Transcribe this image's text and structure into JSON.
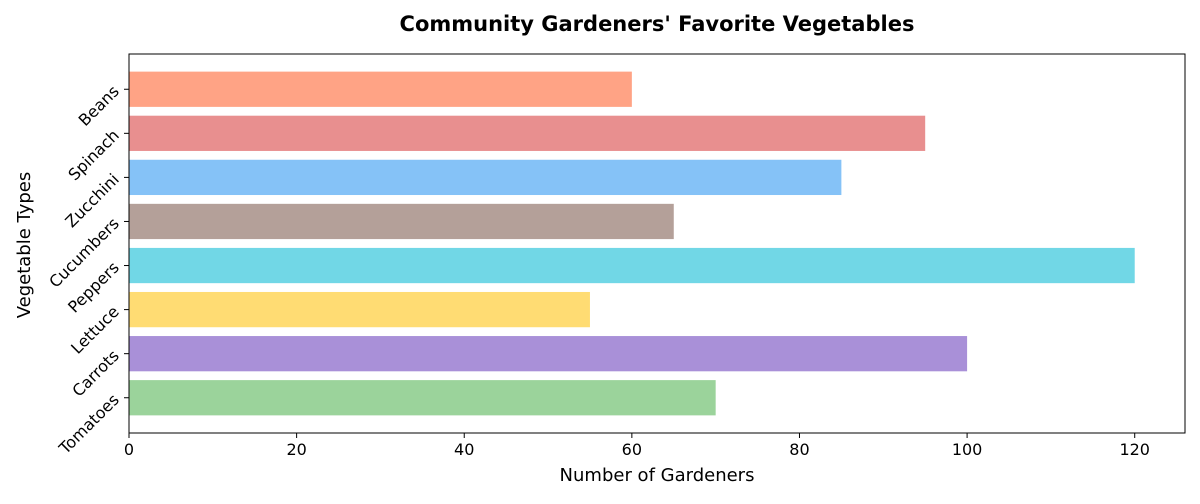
{
  "chart_data": {
    "type": "bar",
    "orientation": "horizontal",
    "title": "Community Gardeners' Favorite Vegetables",
    "xlabel": "Number of Gardeners",
    "ylabel": "Vegetable Types",
    "categories": [
      "Tomatoes",
      "Carrots",
      "Lettuce",
      "Peppers",
      "Cucumbers",
      "Zucchini",
      "Spinach",
      "Beans"
    ],
    "values": [
      70,
      100,
      55,
      120,
      65,
      85,
      95,
      60
    ],
    "colors": [
      "#9bd39b",
      "#a990d8",
      "#ffdc73",
      "#71d7e6",
      "#b4a099",
      "#85c2f7",
      "#e88f8f",
      "#ffa385"
    ],
    "xlim": [
      0,
      126
    ],
    "xticks": [
      0,
      20,
      40,
      60,
      80,
      100,
      120
    ],
    "grid": false,
    "legend": "none"
  }
}
